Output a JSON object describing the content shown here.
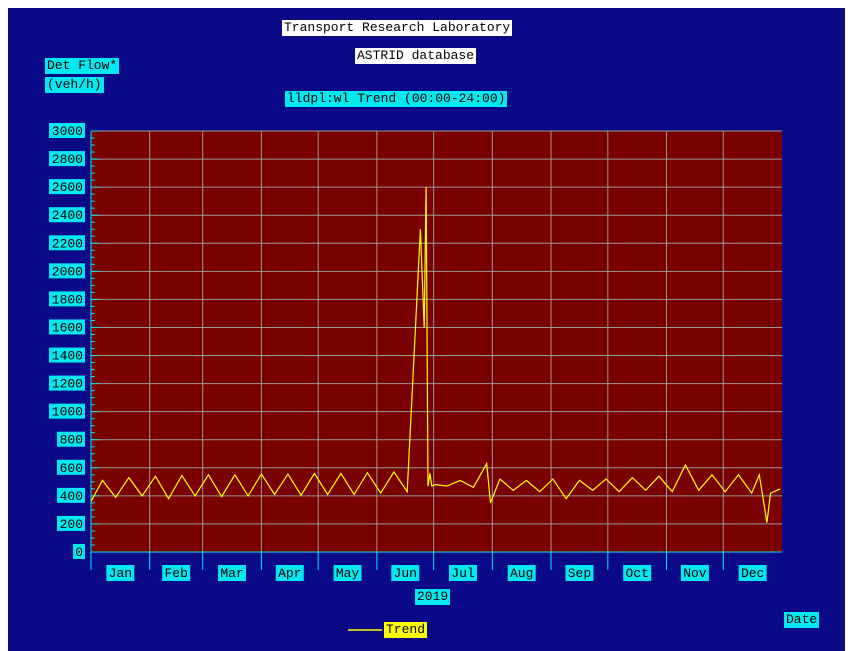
{
  "header": {
    "title": "Transport Research Laboratory",
    "subtitle": "ASTRID database",
    "plot_title": "lldpl:wl Trend (00:00-24:00)"
  },
  "axis": {
    "ylabel_line1": "Det Flow*",
    "ylabel_line2": "(veh/h)",
    "xlabel": "Date",
    "year": "2019"
  },
  "legend": {
    "label": "Trend"
  },
  "colors": {
    "background": "#0a0a88",
    "plot_area": "#7a0000",
    "series": "#ffff00",
    "label_box": "#00e8f0",
    "grid": "#999999"
  },
  "chart_data": {
    "type": "line",
    "title": "lldpl:wl Trend (00:00-24:00)",
    "xlabel": "Date",
    "ylabel": "Det Flow* (veh/h)",
    "ylim": [
      0,
      3000
    ],
    "yticks": [
      "0",
      "200",
      "400",
      "600",
      "800",
      "1000",
      "1200",
      "1400",
      "1600",
      "1800",
      "2000",
      "2200",
      "2400",
      "2600",
      "2800",
      "3000"
    ],
    "xlim": [
      "2019-01-01",
      "2019-12-31"
    ],
    "xticks": [
      "Jan",
      "Feb",
      "Mar",
      "Apr",
      "May",
      "Jun",
      "Jul",
      "Aug",
      "Sep",
      "Oct",
      "Nov",
      "Dec"
    ],
    "grid": true,
    "legend": "bottom-center",
    "series": [
      {
        "name": "Trend",
        "x": [
          "2019-01-01",
          "2019-01-07",
          "2019-01-14",
          "2019-01-21",
          "2019-01-28",
          "2019-02-04",
          "2019-02-11",
          "2019-02-18",
          "2019-02-25",
          "2019-03-04",
          "2019-03-11",
          "2019-03-18",
          "2019-03-25",
          "2019-04-01",
          "2019-04-08",
          "2019-04-15",
          "2019-04-22",
          "2019-04-29",
          "2019-05-06",
          "2019-05-13",
          "2019-05-20",
          "2019-05-27",
          "2019-06-03",
          "2019-06-10",
          "2019-06-17",
          "2019-06-24",
          "2019-06-26",
          "2019-06-27",
          "2019-06-28",
          "2019-06-29",
          "2019-06-30",
          "2019-07-02",
          "2019-07-08",
          "2019-07-15",
          "2019-07-22",
          "2019-07-29",
          "2019-07-31",
          "2019-08-05",
          "2019-08-12",
          "2019-08-19",
          "2019-08-26",
          "2019-09-02",
          "2019-09-09",
          "2019-09-16",
          "2019-09-23",
          "2019-09-30",
          "2019-10-07",
          "2019-10-14",
          "2019-10-21",
          "2019-10-28",
          "2019-11-04",
          "2019-11-11",
          "2019-11-18",
          "2019-11-25",
          "2019-12-02",
          "2019-12-09",
          "2019-12-16",
          "2019-12-20",
          "2019-12-24",
          "2019-12-26",
          "2019-12-31"
        ],
        "y": [
          360,
          510,
          390,
          530,
          400,
          540,
          380,
          545,
          400,
          550,
          395,
          550,
          400,
          555,
          410,
          555,
          405,
          560,
          410,
          560,
          410,
          565,
          420,
          570,
          430,
          2300,
          1600,
          2600,
          470,
          560,
          470,
          480,
          470,
          510,
          460,
          630,
          350,
          520,
          440,
          510,
          430,
          520,
          380,
          510,
          440,
          520,
          430,
          530,
          440,
          540,
          430,
          620,
          440,
          550,
          430,
          550,
          420,
          550,
          210,
          420,
          450
        ]
      }
    ]
  }
}
